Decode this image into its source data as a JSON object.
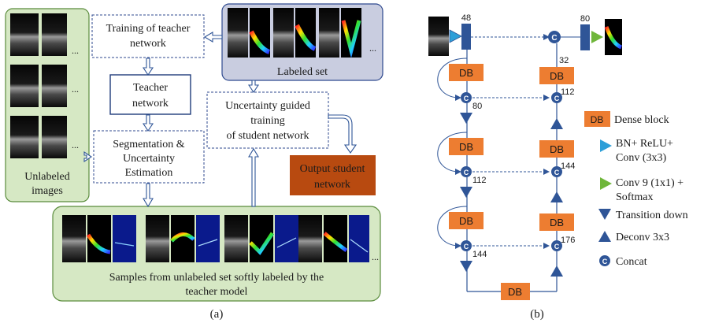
{
  "panel_a": {
    "unlabeled_images": "Unlabeled images",
    "unlabeled_images_l1": "Unlabeled",
    "unlabeled_images_l2": "images",
    "labeled_set": "Labeled set",
    "training_teacher_l1": "Training of teacher",
    "training_teacher_l2": "network",
    "teacher_network_l1": "Teacher",
    "teacher_network_l2": "network",
    "seg_uncert_l1": "Segmentation &",
    "seg_uncert_l2": "Uncertainty",
    "seg_uncert_l3": "Estimation",
    "uncert_guided_l1": "Uncertainty guided",
    "uncert_guided_l2": "training",
    "uncert_guided_l3": "of student network",
    "output_student_l1": "Output student",
    "output_student_l2": "network",
    "samples_l1": "Samples from unlabeled set softly labeled by the",
    "samples_l2": "teacher model",
    "ellipsis": "...",
    "caption": "(a)"
  },
  "panel_b": {
    "db_label": "DB",
    "ch_in": "48",
    "ch_out": "80",
    "ch_32": "32",
    "ch_80": "80",
    "ch_112a": "112",
    "ch_112b": "112",
    "ch_144a": "144",
    "ch_144b": "144",
    "ch_176": "176",
    "concat_symbol": "C",
    "caption": "(b)"
  },
  "legend": {
    "dense_block": "Dense block",
    "bn_relu_l1": "BN+ ReLU+",
    "bn_relu_l2": "Conv (3x3)",
    "conv9_l1": "Conv 9 (1x1) +",
    "conv9_l2": "Softmax",
    "transition_down": "Transition down",
    "deconv": "Deconv 3x3",
    "concat": "Concat"
  },
  "colors": {
    "green_panel": "#d6e8c4",
    "green_border": "#5a8c3c",
    "labeled_bg": "#c9cde0",
    "dashed_border": "#2f4a8f",
    "teacher_border": "#1f3b7a",
    "output_student": "#b84a10",
    "dense_block": "#ed7d31",
    "blue_dark": "#2f5597",
    "blue_light": "#2e9fd8",
    "green_tri": "#6fb63a"
  }
}
